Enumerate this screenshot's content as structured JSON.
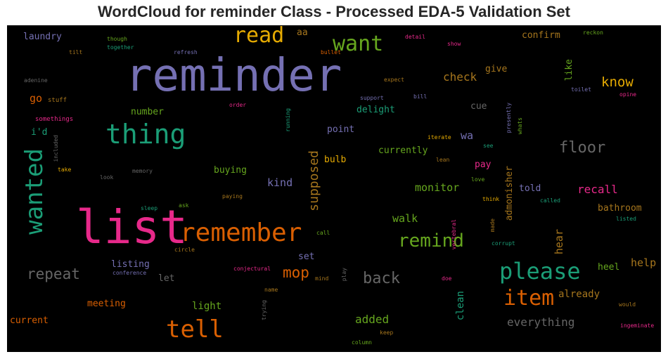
{
  "chart_data": {
    "type": "wordcloud",
    "title": "WordCloud for reminder Class - Processed EDA-5 Validation Set",
    "palette": [
      "#1b9e77",
      "#d95f02",
      "#7570b3",
      "#e7298a",
      "#66a61e",
      "#e6ab02",
      "#a6761d",
      "#666666"
    ],
    "words": [
      {
        "text": "reminder",
        "color": "#7570b3",
        "weight": 64
      },
      {
        "text": "list",
        "color": "#e7298a",
        "weight": 66
      },
      {
        "text": "remember",
        "color": "#d95f02",
        "weight": 36
      },
      {
        "text": "thing",
        "color": "#1b9e77",
        "weight": 38
      },
      {
        "text": "wanted",
        "color": "#1b9e77",
        "weight": 34,
        "vertical": true
      },
      {
        "text": "tell",
        "color": "#d95f02",
        "weight": 34
      },
      {
        "text": "please",
        "color": "#1b9e77",
        "weight": 32
      },
      {
        "text": "item",
        "color": "#d95f02",
        "weight": 30
      },
      {
        "text": "read",
        "color": "#e6ab02",
        "weight": 30
      },
      {
        "text": "want",
        "color": "#66a61e",
        "weight": 30
      },
      {
        "text": "remind",
        "color": "#66a61e",
        "weight": 26
      },
      {
        "text": "floor",
        "color": "#666666",
        "weight": 22
      },
      {
        "text": "back",
        "color": "#666666",
        "weight": 22
      },
      {
        "text": "repeat",
        "color": "#666666",
        "weight": 21
      },
      {
        "text": "mop",
        "color": "#d95f02",
        "weight": 21
      },
      {
        "text": "know",
        "color": "#e6ab02",
        "weight": 19
      },
      {
        "text": "supposed",
        "color": "#a6761d",
        "weight": 18,
        "vertical": true
      },
      {
        "text": "recall",
        "color": "#e7298a",
        "weight": 16
      },
      {
        "text": "check",
        "color": "#a6761d",
        "weight": 16
      },
      {
        "text": "added",
        "color": "#66a61e",
        "weight": 16
      },
      {
        "text": "everything",
        "color": "#666666",
        "weight": 16
      },
      {
        "text": "walk",
        "color": "#66a61e",
        "weight": 15
      },
      {
        "text": "monitor",
        "color": "#66a61e",
        "weight": 15
      },
      {
        "text": "kind",
        "color": "#7570b3",
        "weight": 15
      },
      {
        "text": "wa",
        "color": "#7570b3",
        "weight": 15
      },
      {
        "text": "go",
        "color": "#d95f02",
        "weight": 15
      },
      {
        "text": "hear",
        "color": "#a6761d",
        "weight": 15,
        "vertical": true
      },
      {
        "text": "help",
        "color": "#a6761d",
        "weight": 15
      },
      {
        "text": "light",
        "color": "#66a61e",
        "weight": 14
      },
      {
        "text": "clean",
        "color": "#1b9e77",
        "weight": 14,
        "vertical": true
      },
      {
        "text": "already",
        "color": "#a6761d",
        "weight": 14
      },
      {
        "text": "listing",
        "color": "#7570b3",
        "weight": 13
      },
      {
        "text": "currently",
        "color": "#66a61e",
        "weight": 13
      },
      {
        "text": "admonisher",
        "color": "#a6761d",
        "weight": 13,
        "vertical": true
      },
      {
        "text": "bathroom",
        "color": "#a6761d",
        "weight": 13
      },
      {
        "text": "buying",
        "color": "#66a61e",
        "weight": 13
      },
      {
        "text": "confirm",
        "color": "#a6761d",
        "weight": 13
      },
      {
        "text": "laundry",
        "color": "#7570b3",
        "weight": 13
      },
      {
        "text": "delight",
        "color": "#1b9e77",
        "weight": 13
      },
      {
        "text": "cue",
        "color": "#666666",
        "weight": 13
      },
      {
        "text": "give",
        "color": "#a6761d",
        "weight": 13
      },
      {
        "text": "like",
        "color": "#66a61e",
        "weight": 13,
        "vertical": true
      },
      {
        "text": "number",
        "color": "#66a61e",
        "weight": 13
      },
      {
        "text": "meeting",
        "color": "#d95f02",
        "weight": 13
      },
      {
        "text": "current",
        "color": "#d95f02",
        "weight": 13
      },
      {
        "text": "told",
        "color": "#7570b3",
        "weight": 13
      },
      {
        "text": "heel",
        "color": "#66a61e",
        "weight": 13
      },
      {
        "text": "pay",
        "color": "#e7298a",
        "weight": 13
      },
      {
        "text": "point",
        "color": "#7570b3",
        "weight": 13
      },
      {
        "text": "bulb",
        "color": "#e6ab02",
        "weight": 13
      },
      {
        "text": "set",
        "color": "#7570b3",
        "weight": 13
      },
      {
        "text": "let",
        "color": "#666666",
        "weight": 13
      },
      {
        "text": "i'd",
        "color": "#1b9e77",
        "weight": 13
      },
      {
        "text": "aa",
        "color": "#a6761d",
        "weight": 13
      },
      {
        "text": "stuff",
        "color": "#a6761d",
        "weight": 9
      },
      {
        "text": "somethings",
        "color": "#e7298a",
        "weight": 9
      },
      {
        "text": "adenine",
        "color": "#666666",
        "weight": 8
      },
      {
        "text": "tilt",
        "color": "#a6761d",
        "weight": 8
      },
      {
        "text": "together",
        "color": "#1b9e77",
        "weight": 8
      },
      {
        "text": "though",
        "color": "#66a61e",
        "weight": 8
      },
      {
        "text": "refresh",
        "color": "#7570b3",
        "weight": 8
      },
      {
        "text": "bullet",
        "color": "#d95f02",
        "weight": 8
      },
      {
        "text": "detail",
        "color": "#e7298a",
        "weight": 8
      },
      {
        "text": "show",
        "color": "#e7298a",
        "weight": 8
      },
      {
        "text": "reckon",
        "color": "#66a61e",
        "weight": 8
      },
      {
        "text": "toilet",
        "color": "#7570b3",
        "weight": 8
      },
      {
        "text": "opine",
        "color": "#e7298a",
        "weight": 8
      },
      {
        "text": "expect",
        "color": "#a6761d",
        "weight": 8
      },
      {
        "text": "support",
        "color": "#7570b3",
        "weight": 8
      },
      {
        "text": "bill",
        "color": "#7570b3",
        "weight": 8
      },
      {
        "text": "order",
        "color": "#e7298a",
        "weight": 8
      },
      {
        "text": "running",
        "color": "#1b9e77",
        "weight": 8,
        "vertical": true
      },
      {
        "text": "presently",
        "color": "#7570b3",
        "weight": 8,
        "vertical": true
      },
      {
        "text": "whats",
        "color": "#66a61e",
        "weight": 8,
        "vertical": true
      },
      {
        "text": "iterate",
        "color": "#e6ab02",
        "weight": 8
      },
      {
        "text": "see",
        "color": "#1b9e77",
        "weight": 8
      },
      {
        "text": "lean",
        "color": "#a6761d",
        "weight": 8
      },
      {
        "text": "included",
        "color": "#666666",
        "weight": 8,
        "vertical": true
      },
      {
        "text": "take",
        "color": "#e6ab02",
        "weight": 8
      },
      {
        "text": "memory",
        "color": "#666666",
        "weight": 8
      },
      {
        "text": "look",
        "color": "#666666",
        "weight": 8
      },
      {
        "text": "love",
        "color": "#66a61e",
        "weight": 8
      },
      {
        "text": "paying",
        "color": "#a6761d",
        "weight": 8
      },
      {
        "text": "think",
        "color": "#e6ab02",
        "weight": 8
      },
      {
        "text": "called",
        "color": "#1b9e77",
        "weight": 8
      },
      {
        "text": "sleep",
        "color": "#1b9e77",
        "weight": 8
      },
      {
        "text": "ask",
        "color": "#66a61e",
        "weight": 8
      },
      {
        "text": "listed",
        "color": "#1b9e77",
        "weight": 8
      },
      {
        "text": "call",
        "color": "#66a61e",
        "weight": 8
      },
      {
        "text": "vertebral",
        "color": "#e7298a",
        "weight": 8,
        "vertical": true
      },
      {
        "text": "made",
        "color": "#a6761d",
        "weight": 8,
        "vertical": true
      },
      {
        "text": "circle",
        "color": "#a6761d",
        "weight": 8
      },
      {
        "text": "corrupt",
        "color": "#1b9e77",
        "weight": 8
      },
      {
        "text": "conference",
        "color": "#7570b3",
        "weight": 8
      },
      {
        "text": "conjectural",
        "color": "#e7298a",
        "weight": 8
      },
      {
        "text": "mind",
        "color": "#a6761d",
        "weight": 8
      },
      {
        "text": "doe",
        "color": "#e7298a",
        "weight": 8
      },
      {
        "text": "play",
        "color": "#666666",
        "weight": 8,
        "vertical": true
      },
      {
        "text": "name",
        "color": "#a6761d",
        "weight": 8
      },
      {
        "text": "trying",
        "color": "#666666",
        "weight": 8,
        "vertical": true
      },
      {
        "text": "keep",
        "color": "#a6761d",
        "weight": 8
      },
      {
        "text": "column",
        "color": "#66a61e",
        "weight": 8
      },
      {
        "text": "would",
        "color": "#a6761d",
        "weight": 8
      },
      {
        "text": "ingeminate",
        "color": "#e7298a",
        "weight": 8
      }
    ]
  }
}
